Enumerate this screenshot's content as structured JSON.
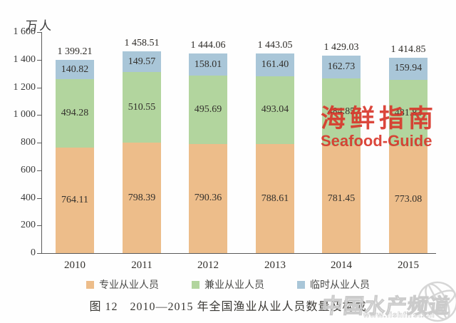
{
  "chart_data": {
    "type": "bar",
    "stacked": true,
    "title": "图 12　2010—2015 年全国渔业从业人员数量及构成",
    "unit_label": "万人",
    "categories": [
      "2010",
      "2011",
      "2012",
      "2013",
      "2014",
      "2015"
    ],
    "series": [
      {
        "name": "专业从业人员",
        "color": "#edbd8a",
        "values": [
          "764.11",
          "798.39",
          "790.36",
          "788.61",
          "781.45",
          "773.08"
        ]
      },
      {
        "name": "兼业从业人员",
        "color": "#b2d59e",
        "values": [
          "494.28",
          "510.55",
          "495.69",
          "493.04",
          "484.85",
          "481.83"
        ]
      },
      {
        "name": "临时从业人员",
        "color": "#a9c6d8",
        "values": [
          "140.82",
          "149.57",
          "158.01",
          "161.40",
          "162.73",
          "159.94"
        ]
      }
    ],
    "totals": [
      "1 399.21",
      "1 458.51",
      "1 444.06",
      "1 443.05",
      "1 429.03",
      "1 414.85"
    ],
    "y_axis": {
      "min": 0,
      "max": 1600,
      "step": 200,
      "tick_labels": [
        "0",
        "200",
        "400",
        "600",
        "800",
        "1 000",
        "1 200",
        "1 400",
        "1 600"
      ]
    },
    "legend_position": "bottom",
    "grid": false
  },
  "watermarks": {
    "seafood": {
      "cn": "海鲜指南",
      "en": "Seafood-Guide",
      "color": "#d9382c"
    },
    "fishfirst": {
      "text": "中国水产频道",
      "url": "www.fishfirst.cn"
    }
  }
}
